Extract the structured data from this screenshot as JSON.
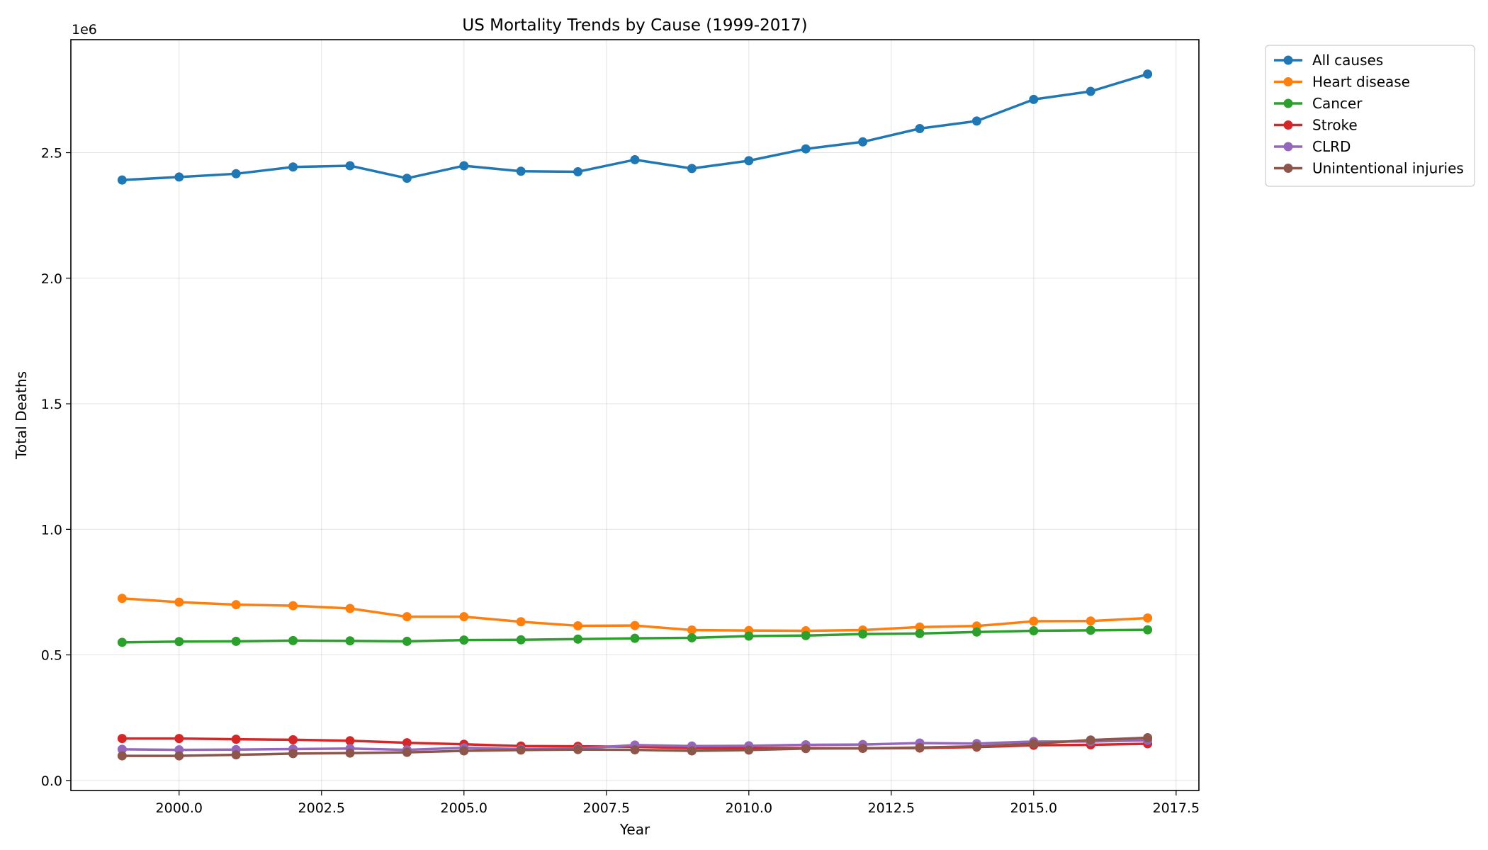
{
  "chart_data": {
    "type": "line",
    "title": "US Mortality Trends by Cause (1999-2017)",
    "xlabel": "Year",
    "ylabel": "Total Deaths",
    "y_offset_label": "1e6",
    "xlim": [
      1998.1,
      2017.9
    ],
    "ylim": [
      -0.04,
      2.95
    ],
    "x_ticks": [
      2000.0,
      2002.5,
      2005.0,
      2007.5,
      2010.0,
      2012.5,
      2015.0,
      2017.5
    ],
    "x_tick_labels": [
      "2000.0",
      "2002.5",
      "2005.0",
      "2007.5",
      "2010.0",
      "2012.5",
      "2015.0",
      "2017.5"
    ],
    "y_ticks": [
      0.0,
      0.5,
      1.0,
      1.5,
      2.0,
      2.5
    ],
    "y_tick_labels": [
      "0.0",
      "0.5",
      "1.0",
      "1.5",
      "2.0",
      "2.5"
    ],
    "grid": true,
    "legend_position": "outside-top-right",
    "x": [
      1999,
      2000,
      2001,
      2002,
      2003,
      2004,
      2005,
      2006,
      2007,
      2008,
      2009,
      2010,
      2011,
      2012,
      2013,
      2014,
      2015,
      2016,
      2017
    ],
    "series": [
      {
        "name": "All causes",
        "color": "#1f77b4",
        "values": [
          2.391,
          2.403,
          2.416,
          2.443,
          2.448,
          2.398,
          2.448,
          2.426,
          2.424,
          2.472,
          2.437,
          2.468,
          2.515,
          2.543,
          2.596,
          2.626,
          2.712,
          2.744,
          2.813
        ]
      },
      {
        "name": "Heart disease",
        "color": "#ff7f0e",
        "values": [
          0.725,
          0.71,
          0.7,
          0.696,
          0.685,
          0.652,
          0.652,
          0.632,
          0.616,
          0.617,
          0.599,
          0.597,
          0.596,
          0.599,
          0.611,
          0.615,
          0.634,
          0.635,
          0.647
        ]
      },
      {
        "name": "Cancer",
        "color": "#2ca02c",
        "values": [
          0.55,
          0.553,
          0.554,
          0.557,
          0.556,
          0.554,
          0.559,
          0.56,
          0.563,
          0.566,
          0.568,
          0.575,
          0.577,
          0.583,
          0.585,
          0.591,
          0.596,
          0.598,
          0.6
        ]
      },
      {
        "name": "Stroke",
        "color": "#d62728",
        "values": [
          0.167,
          0.167,
          0.164,
          0.162,
          0.158,
          0.15,
          0.144,
          0.137,
          0.136,
          0.134,
          0.129,
          0.129,
          0.129,
          0.128,
          0.129,
          0.133,
          0.14,
          0.142,
          0.146
        ]
      },
      {
        "name": "CLRD",
        "color": "#9467bd",
        "values": [
          0.124,
          0.122,
          0.123,
          0.125,
          0.127,
          0.122,
          0.13,
          0.125,
          0.127,
          0.141,
          0.137,
          0.138,
          0.142,
          0.143,
          0.149,
          0.147,
          0.155,
          0.155,
          0.16
        ]
      },
      {
        "name": "Unintentional injuries",
        "color": "#8c564b",
        "values": [
          0.098,
          0.098,
          0.102,
          0.107,
          0.109,
          0.112,
          0.118,
          0.121,
          0.123,
          0.122,
          0.118,
          0.121,
          0.127,
          0.128,
          0.131,
          0.136,
          0.146,
          0.161,
          0.17
        ]
      }
    ]
  }
}
